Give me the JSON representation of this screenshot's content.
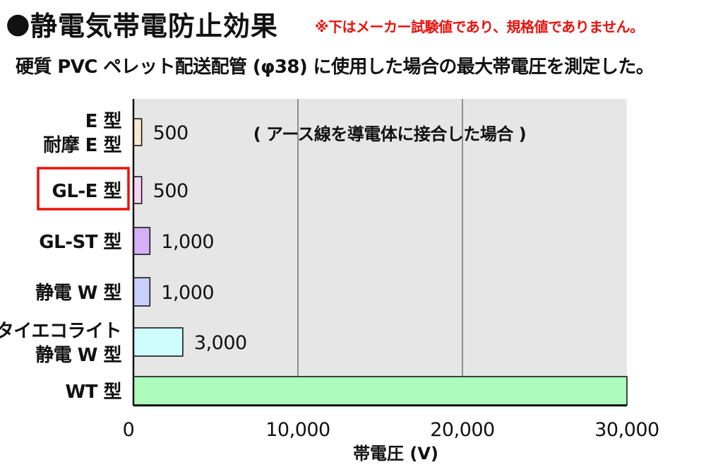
{
  "header": {
    "bullet": "●",
    "title": "静電気帯電防止効果",
    "note": "※下はメーカー試験値であり、規格値でありません。",
    "subtitle": "硬質 PVC ペレット配送配管 (φ38) に使用した場合の最大帯電圧を測定した。"
  },
  "colors": {
    "plot_bg": "#e6e6e6",
    "grid": "#555555",
    "highlight_box": "#e8120c",
    "note_text": "#e8120c"
  },
  "chart_data": {
    "type": "bar",
    "orientation": "horizontal",
    "categories": [
      [
        "E 型",
        "耐摩 E 型"
      ],
      [
        "GL-E 型"
      ],
      [
        "GL-ST 型"
      ],
      [
        "静電 W 型"
      ],
      [
        "タイエコライト",
        "静電 W 型"
      ],
      [
        "WT 型"
      ]
    ],
    "values": [
      500,
      500,
      1000,
      1000,
      3000,
      30000
    ],
    "value_labels": [
      "500",
      "500",
      "1,000",
      "1,000",
      "3,000",
      ""
    ],
    "bar_colors": [
      "#fde6cf",
      "#f9d4f3",
      "#d6b0f7",
      "#c9d0fb",
      "#cffcfc",
      "#acfcbe"
    ],
    "highlighted_category_index": 1,
    "annotation": "( アース線を導電体に接合した場合 )",
    "xlabel": "帯電圧 (V)",
    "xlim": [
      0,
      30000
    ],
    "xticks": [
      0,
      10000,
      20000,
      30000
    ],
    "xtick_labels": [
      "0",
      "10,000",
      "20,000",
      "30,000"
    ],
    "grid": true
  }
}
